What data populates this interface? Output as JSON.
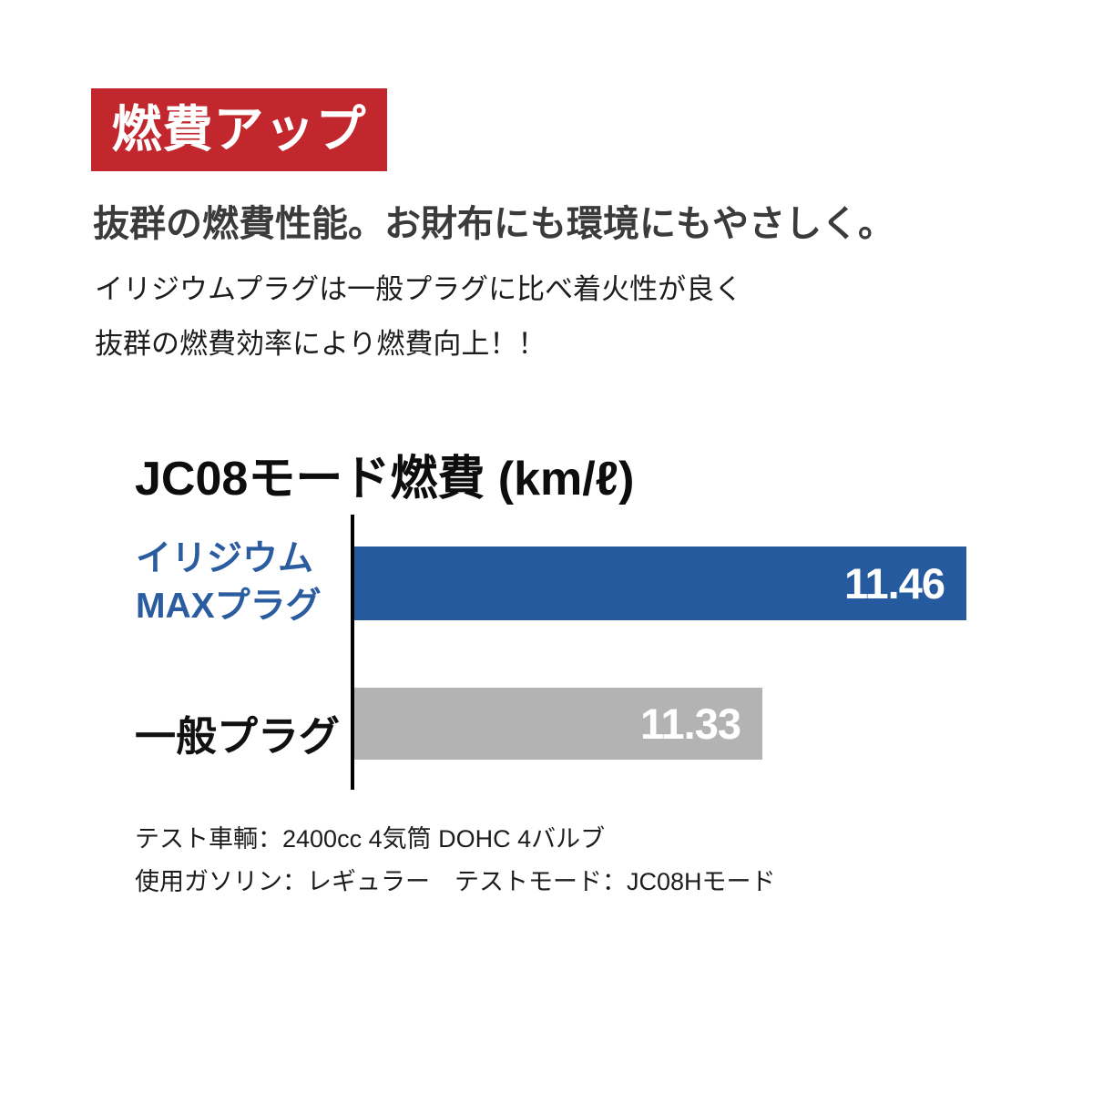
{
  "badge": {
    "label": "燃費アップ",
    "bg_color": "#c1272d"
  },
  "headline": "抜群の燃費性能。お財布にも環境にもやさしく。",
  "description": {
    "line1": "イリジウムプラグは一般プラグに比べ着火性が良く",
    "line2": "抜群の燃費効率により燃費向上！！"
  },
  "chart_data": {
    "type": "bar",
    "orientation": "horizontal",
    "title": "JC08モード燃費 (km/ℓ)",
    "categories": [
      "イリジウムMAXプラグ",
      "一般プラグ"
    ],
    "values": [
      11.46,
      11.33
    ],
    "xlim": [
      11.07,
      11.46
    ],
    "grid": false,
    "legend": false,
    "axis_style": "single black vertical baseline on left, no ticks, values printed in white inside right end of each bar",
    "bars": [
      {
        "label_line1": "イリジウム",
        "label_line2": "MAXプラグ",
        "value_label": "11.46",
        "color": "#255a9e",
        "label_color": "#2a5c9f"
      },
      {
        "label_line1": "一般プラグ",
        "label_line2": "",
        "value_label": "11.33",
        "color": "#b3b3b3",
        "label_color": "#111111"
      }
    ]
  },
  "footnotes": {
    "line1": "テスト車輌：2400cc 4気筒 DOHC 4バルブ",
    "line2": "使用ガソリン：レギュラー　テストモード：JC08Hモード"
  },
  "colors": {
    "badge_red": "#c1272d",
    "bar_blue": "#255a9e",
    "bar_gray": "#b3b3b3",
    "headline_gray": "#3b3b3b",
    "axis_black": "#000000",
    "value_text": "#ffffff"
  }
}
